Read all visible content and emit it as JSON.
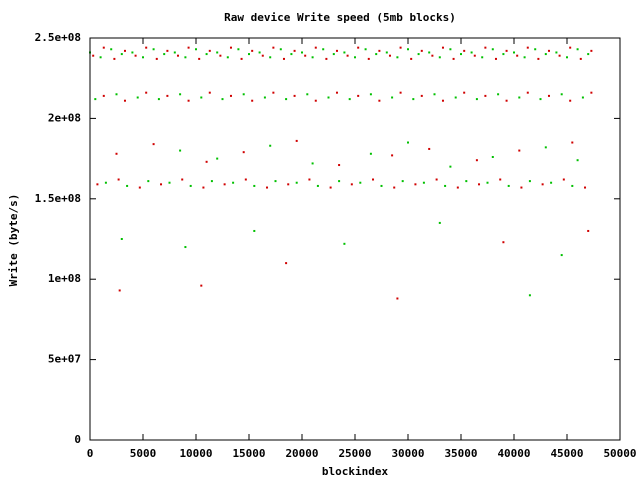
{
  "chart_data": {
    "type": "scatter",
    "title": "Raw device Write speed (5mb blocks)",
    "x_label": "blockindex",
    "y_label": "Write (byte/s)",
    "xlim": [
      0,
      50000
    ],
    "xticks": [
      0,
      5000,
      10000,
      15000,
      20000,
      25000,
      30000,
      35000,
      40000,
      45000,
      50000
    ],
    "ylim": [
      0,
      250000000.0
    ],
    "yticks": [
      0,
      {
        "value": 50000000.0,
        "label": "5e+07"
      },
      {
        "value": 100000000.0,
        "label": "1e+08"
      },
      {
        "value": 150000000.0,
        "label": "1.5e+08"
      },
      {
        "value": 200000000.0,
        "label": "2e+08"
      },
      {
        "value": 250000000.0,
        "label": "2.5e+08"
      }
    ],
    "series": [
      {
        "color": "#d00000",
        "x": [
          300,
          1300,
          2300,
          3300,
          4300,
          5300,
          6300,
          7300,
          8300,
          9300,
          10300,
          11300,
          12300,
          13300,
          14300,
          15300,
          16300,
          17300,
          18300,
          19300,
          20300,
          21300,
          22300,
          23300,
          24300,
          25300,
          26300,
          27300,
          28300,
          29300,
          30300,
          31300,
          32300,
          33300,
          34300,
          35300,
          36300,
          37300,
          38300,
          39300,
          40300,
          41300,
          42300,
          43300,
          44300,
          45300,
          46300,
          47300,
          1300,
          3300,
          5300,
          7300,
          9300,
          11300,
          13300,
          15300,
          17300,
          19300,
          21300,
          23300,
          25300,
          27300,
          29300,
          31300,
          33300,
          35300,
          37300,
          39300,
          41300,
          43300,
          45300,
          47300,
          700,
          2700,
          4700,
          6700,
          8700,
          10700,
          12700,
          14700,
          16700,
          18700,
          20700,
          22700,
          24700,
          26700,
          28700,
          30700,
          32700,
          34700,
          36700,
          38700,
          40700,
          42700,
          44700,
          46700,
          2500,
          6000,
          11000,
          14500,
          19500,
          23500,
          28500,
          32000,
          36500,
          40500,
          45500,
          2800,
          10500,
          18500,
          29000,
          39000,
          47000
        ],
        "values": [
          239000000.0,
          244000000.0,
          237000000.0,
          242000000.0,
          239000000.0,
          244000000.0,
          237000000.0,
          242000000.0,
          239000000.0,
          244000000.0,
          237000000.0,
          242000000.0,
          239000000.0,
          244000000.0,
          237000000.0,
          242000000.0,
          239000000.0,
          244000000.0,
          237000000.0,
          242000000.0,
          239000000.0,
          244000000.0,
          237000000.0,
          242000000.0,
          239000000.0,
          244000000.0,
          237000000.0,
          242000000.0,
          239000000.0,
          244000000.0,
          237000000.0,
          242000000.0,
          239000000.0,
          244000000.0,
          237000000.0,
          242000000.0,
          239000000.0,
          244000000.0,
          237000000.0,
          242000000.0,
          239000000.0,
          244000000.0,
          237000000.0,
          242000000.0,
          239000000.0,
          244000000.0,
          237000000.0,
          242000000.0,
          214000000.0,
          211000000.0,
          216000000.0,
          214000000.0,
          211000000.0,
          216000000.0,
          214000000.0,
          211000000.0,
          216000000.0,
          214000000.0,
          211000000.0,
          216000000.0,
          214000000.0,
          211000000.0,
          216000000.0,
          214000000.0,
          211000000.0,
          216000000.0,
          214000000.0,
          211000000.0,
          216000000.0,
          214000000.0,
          211000000.0,
          216000000.0,
          159000000.0,
          162000000.0,
          157000000.0,
          159000000.0,
          162000000.0,
          157000000.0,
          159000000.0,
          162000000.0,
          157000000.0,
          159000000.0,
          162000000.0,
          157000000.0,
          159000000.0,
          162000000.0,
          157000000.0,
          159000000.0,
          162000000.0,
          157000000.0,
          159000000.0,
          162000000.0,
          157000000.0,
          159000000.0,
          162000000.0,
          157000000.0,
          178000000.0,
          184000000.0,
          173000000.0,
          179000000.0,
          186000000.0,
          171000000.0,
          177000000.0,
          181000000.0,
          174000000.0,
          180000000.0,
          185000000.0,
          93000000.0,
          96000000.0,
          110000000.0,
          88000000.0,
          123000000.0,
          130000000.0
        ]
      },
      {
        "color": "#00c000",
        "x": [
          0,
          1000,
          2000,
          3000,
          4000,
          5000,
          6000,
          7000,
          8000,
          9000,
          10000,
          11000,
          12000,
          13000,
          14000,
          15000,
          16000,
          17000,
          18000,
          19000,
          20000,
          21000,
          22000,
          23000,
          24000,
          25000,
          26000,
          27000,
          28000,
          29000,
          30000,
          31000,
          32000,
          33000,
          34000,
          35000,
          36000,
          37000,
          38000,
          39000,
          40000,
          41000,
          42000,
          43000,
          44000,
          45000,
          46000,
          47000,
          500,
          2500,
          4500,
          6500,
          8500,
          10500,
          12500,
          14500,
          16500,
          18500,
          20500,
          22500,
          24500,
          26500,
          28500,
          30500,
          32500,
          34500,
          36500,
          38500,
          40500,
          42500,
          44500,
          46500,
          1500,
          3500,
          5500,
          7500,
          9500,
          11500,
          13500,
          15500,
          17500,
          19500,
          21500,
          23500,
          25500,
          27500,
          29500,
          31500,
          33500,
          35500,
          37500,
          39500,
          41500,
          43500,
          45500,
          8500,
          12000,
          17000,
          21000,
          26500,
          30000,
          34000,
          38000,
          43000,
          46000,
          3000,
          9000,
          15500,
          24000,
          33000,
          41500,
          44500
        ],
        "values": [
          241000000.0,
          238000000.0,
          243000000.0,
          240000000.0,
          241000000.0,
          238000000.0,
          243000000.0,
          240000000.0,
          241000000.0,
          238000000.0,
          243000000.0,
          240000000.0,
          241000000.0,
          238000000.0,
          243000000.0,
          240000000.0,
          241000000.0,
          238000000.0,
          243000000.0,
          240000000.0,
          241000000.0,
          238000000.0,
          243000000.0,
          240000000.0,
          241000000.0,
          238000000.0,
          243000000.0,
          240000000.0,
          241000000.0,
          238000000.0,
          243000000.0,
          240000000.0,
          241000000.0,
          238000000.0,
          243000000.0,
          240000000.0,
          241000000.0,
          238000000.0,
          243000000.0,
          240000000.0,
          241000000.0,
          238000000.0,
          243000000.0,
          240000000.0,
          241000000.0,
          238000000.0,
          243000000.0,
          240000000.0,
          212000000.0,
          215000000.0,
          213000000.0,
          212000000.0,
          215000000.0,
          213000000.0,
          212000000.0,
          215000000.0,
          213000000.0,
          212000000.0,
          215000000.0,
          213000000.0,
          212000000.0,
          215000000.0,
          213000000.0,
          212000000.0,
          215000000.0,
          213000000.0,
          212000000.0,
          215000000.0,
          213000000.0,
          212000000.0,
          215000000.0,
          213000000.0,
          160000000.0,
          158000000.0,
          161000000.0,
          160000000.0,
          158000000.0,
          161000000.0,
          160000000.0,
          158000000.0,
          161000000.0,
          160000000.0,
          158000000.0,
          161000000.0,
          160000000.0,
          158000000.0,
          161000000.0,
          160000000.0,
          158000000.0,
          161000000.0,
          160000000.0,
          158000000.0,
          161000000.0,
          160000000.0,
          158000000.0,
          180000000.0,
          175000000.0,
          183000000.0,
          172000000.0,
          178000000.0,
          185000000.0,
          170000000.0,
          176000000.0,
          182000000.0,
          174000000.0,
          125000000.0,
          120000000.0,
          130000000.0,
          122000000.0,
          135000000.0,
          90000000.0,
          115000000.0
        ]
      }
    ]
  }
}
